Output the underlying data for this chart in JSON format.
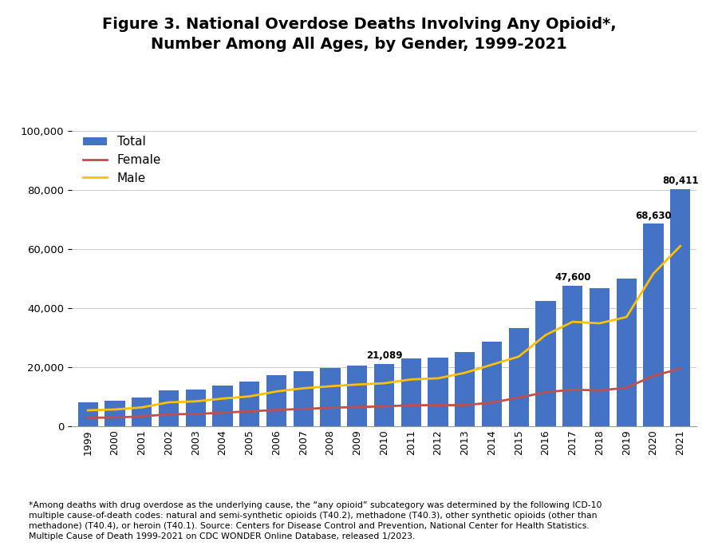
{
  "title": "Figure 3. National Overdose Deaths Involving Any Opioid*,\nNumber Among All Ages, by Gender, 1999-2021",
  "years": [
    1999,
    2000,
    2001,
    2002,
    2003,
    2004,
    2005,
    2006,
    2007,
    2008,
    2009,
    2010,
    2011,
    2012,
    2013,
    2014,
    2015,
    2016,
    2017,
    2018,
    2019,
    2020,
    2021
  ],
  "total": [
    8048,
    8407,
    9496,
    11920,
    12334,
    13756,
    14918,
    17087,
    18515,
    19582,
    20422,
    21089,
    22784,
    23166,
    25052,
    28647,
    33091,
    42249,
    47600,
    46802,
    49860,
    68630,
    80411
  ],
  "female": [
    2759,
    2836,
    3220,
    3932,
    4019,
    4497,
    4916,
    5408,
    5747,
    6143,
    6398,
    6631,
    7023,
    7022,
    7049,
    7891,
    9575,
    11419,
    12290,
    12010,
    12939,
    16977,
    19413
  ],
  "male": [
    5289,
    5571,
    6276,
    7988,
    8315,
    9259,
    10002,
    11679,
    12768,
    13439,
    14024,
    14458,
    15761,
    16144,
    18003,
    20756,
    23516,
    30830,
    35310,
    34792,
    36921,
    51653,
    60998
  ],
  "bar_color": "#4472C4",
  "female_color": "#C0504D",
  "male_color": "#FFC000",
  "ylim": [
    0,
    100000
  ],
  "yticks": [
    0,
    20000,
    40000,
    60000,
    80000,
    100000
  ],
  "annotated": {
    "2010": "21,089",
    "2017": "47,600",
    "2020": "68,630",
    "2021": "80,411"
  },
  "footnote": "*Among deaths with drug overdose as the underlying cause, the “any opioid” subcategory was determined by the following ICD-10\nmultiple cause-of-death codes: natural and semi-synthetic opioids (T40.2), methadone (T40.3), other synthetic opioids (other than\nmethadone) (T40.4), or heroin (T40.1). Source: Centers for Disease Control and Prevention, National Center for Health Statistics.\nMultiple Cause of Death 1999-2021 on CDC WONDER Online Database, released 1/2023."
}
